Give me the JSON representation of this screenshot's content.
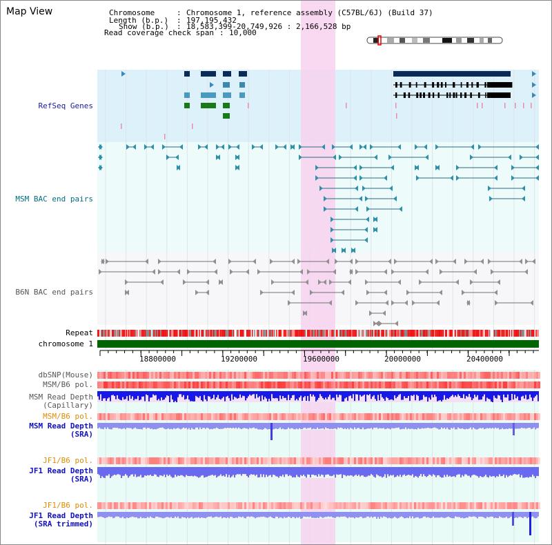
{
  "title": "Map View",
  "info": {
    "chromosome_key": "Chromosome",
    "chromosome_val": "Chromosome 1, reference assembly (C57BL/6J) (Build 37)",
    "length_key": "Length (b.p.)",
    "length_val": "197,195,432",
    "show_key": "Show (b.p.)",
    "show_val": "18,583,399-20,749,926 : 2,166,528 bp",
    "span_key": "Read coverage check span",
    "span_val": "10,000"
  },
  "tracks": {
    "refseq": "RefSeq Genes",
    "msm_bac": "MSM BAC end pairs",
    "b6n_bac": "B6N BAC end pairs",
    "repeat": "Repeat",
    "chromosome": "chromosome 1",
    "dbsnp": "dbSNP(Mouse)",
    "msm_b6_pol_1": "MSM/B6 pol.",
    "msm_depth_cap_1": "MSM Read Depth",
    "msm_depth_cap_2": "(Capillary)",
    "msm_b6_pol_2": "MSM/B6 pol.",
    "msm_depth_sra_1": "MSM Read Depth",
    "msm_depth_sra_2": "(SRA)",
    "jf1_b6_pol_1": "JF1/B6 pol.",
    "jf1_depth_sra_1": "JF1 Read Depth",
    "jf1_depth_sra_2": "(SRA)",
    "jf1_b6_pol_2": "JF1/B6 pol.",
    "jf1_depth_trim_1": "JF1 Read Depth",
    "jf1_depth_trim_2": "(SRA trimmed)"
  },
  "axis": {
    "ticks": [
      "18800000",
      "19200000",
      "19600000",
      "20000000",
      "20400000"
    ]
  },
  "colors": {
    "refseq_label": "#1a1aa0",
    "msm_label": "#006c80",
    "b6n_label": "#555555",
    "orange_label": "#e08a00",
    "blue_label": "#1010c0",
    "highlight": "#f7d2ef",
    "chromosome_bar": "#006400"
  }
}
